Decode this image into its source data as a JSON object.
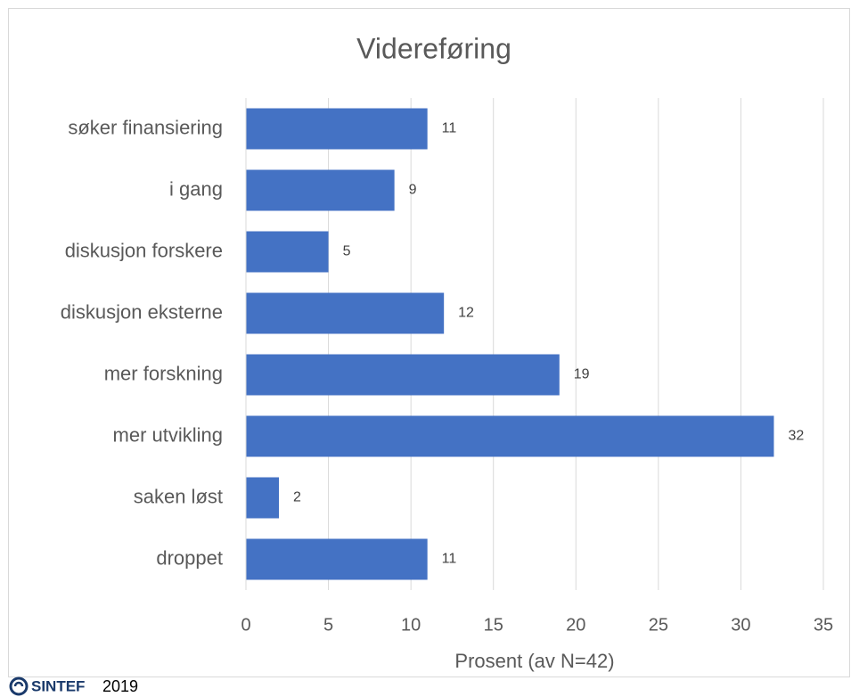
{
  "chart_data": {
    "type": "bar",
    "orientation": "horizontal",
    "title": "Videreføring",
    "categories": [
      "søker finansiering",
      "i gang",
      "diskusjon forskere",
      "diskusjon eksterne",
      "mer forskning",
      "mer utvikling",
      "saken løst",
      "droppet"
    ],
    "values": [
      11,
      9,
      5,
      12,
      19,
      32,
      2,
      11
    ],
    "color": "#4472c4",
    "xlim": [
      0,
      35
    ],
    "xticks": [
      0,
      5,
      10,
      15,
      20,
      25,
      30,
      35
    ],
    "grid": true,
    "x_label": "Prosent (av N=42)"
  },
  "footer": {
    "brand": "SINTEF",
    "year": "2019"
  }
}
